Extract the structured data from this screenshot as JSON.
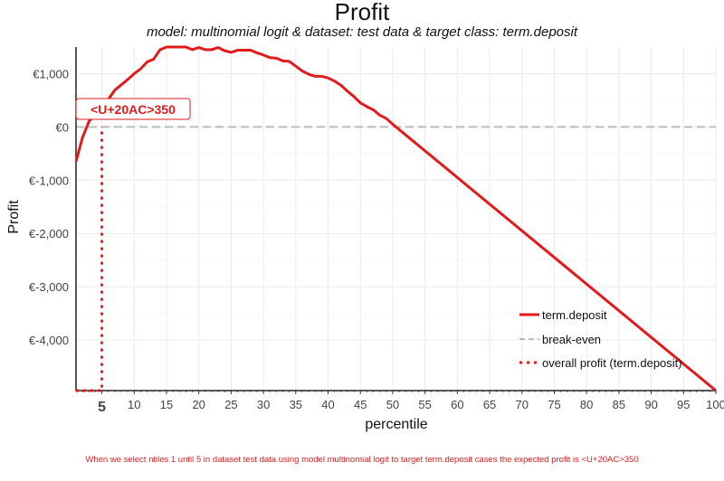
{
  "chart_data": {
    "type": "line",
    "title": "Profit",
    "subtitle": "model: multinomial logit  &  dataset: test data  &  target class: term.deposit",
    "xlabel": "percentile",
    "ylabel": "Profit",
    "xlim": [
      1,
      100
    ],
    "ylim": [
      -4950,
      1500
    ],
    "x_ticks": [
      5,
      10,
      15,
      20,
      25,
      30,
      35,
      40,
      45,
      50,
      55,
      60,
      65,
      70,
      75,
      80,
      85,
      90,
      95,
      100
    ],
    "x_tick_labels": [
      "5",
      "10",
      "15",
      "20",
      "25",
      "30",
      "35",
      "40",
      "45",
      "50",
      "55",
      "60",
      "65",
      "70",
      "75",
      "80",
      "85",
      "90",
      "95",
      "100"
    ],
    "highlight_x_tick": "5",
    "y_ticks": [
      1000,
      0,
      -1000,
      -2000,
      -3000,
      -4000
    ],
    "y_tick_labels": [
      "€1,000",
      "€0",
      "€-1,000",
      "€-2,000",
      "€-3,000",
      "€-4,000"
    ],
    "grid": true,
    "legend_position": "bottom-right",
    "series": [
      {
        "name": "term.deposit",
        "color": "#e31a1c",
        "style": "solid",
        "x": [
          1,
          2,
          3,
          4,
          5,
          6,
          7,
          8,
          9,
          10,
          11,
          12,
          13,
          14,
          15,
          16,
          17,
          18,
          19,
          20,
          21,
          22,
          23,
          24,
          25,
          26,
          27,
          28,
          29,
          30,
          31,
          32,
          33,
          34,
          35,
          36,
          37,
          38,
          39,
          40,
          41,
          42,
          43,
          44,
          45,
          46,
          47,
          48,
          49,
          50,
          100
        ],
        "values": [
          -650,
          -200,
          100,
          250,
          350,
          520,
          690,
          790,
          890,
          1000,
          1090,
          1220,
          1270,
          1450,
          1500,
          1500,
          1500,
          1500,
          1450,
          1490,
          1450,
          1450,
          1490,
          1430,
          1400,
          1440,
          1440,
          1440,
          1390,
          1350,
          1300,
          1290,
          1240,
          1230,
          1140,
          1050,
          990,
          950,
          950,
          920,
          860,
          780,
          670,
          570,
          450,
          380,
          320,
          220,
          160,
          50,
          -4950
        ]
      },
      {
        "name": "break-even",
        "color": "#bbbbbb",
        "style": "dashed",
        "x": [
          1,
          100
        ],
        "values": [
          0,
          0
        ]
      },
      {
        "name": "overall profit (term.deposit)",
        "color": "#e31a1c",
        "style": "dotted",
        "x": [
          1,
          5,
          5
        ],
        "values": [
          -4950,
          -4950,
          0
        ]
      }
    ],
    "annotation": {
      "text": "<U+20AC>350",
      "x": 5,
      "y": 350
    },
    "caption": "When we select ntiles 1 until 5 in dataset test data using model multinomial logit to target term.deposit cases the expected profit is <U+20AC>350"
  }
}
